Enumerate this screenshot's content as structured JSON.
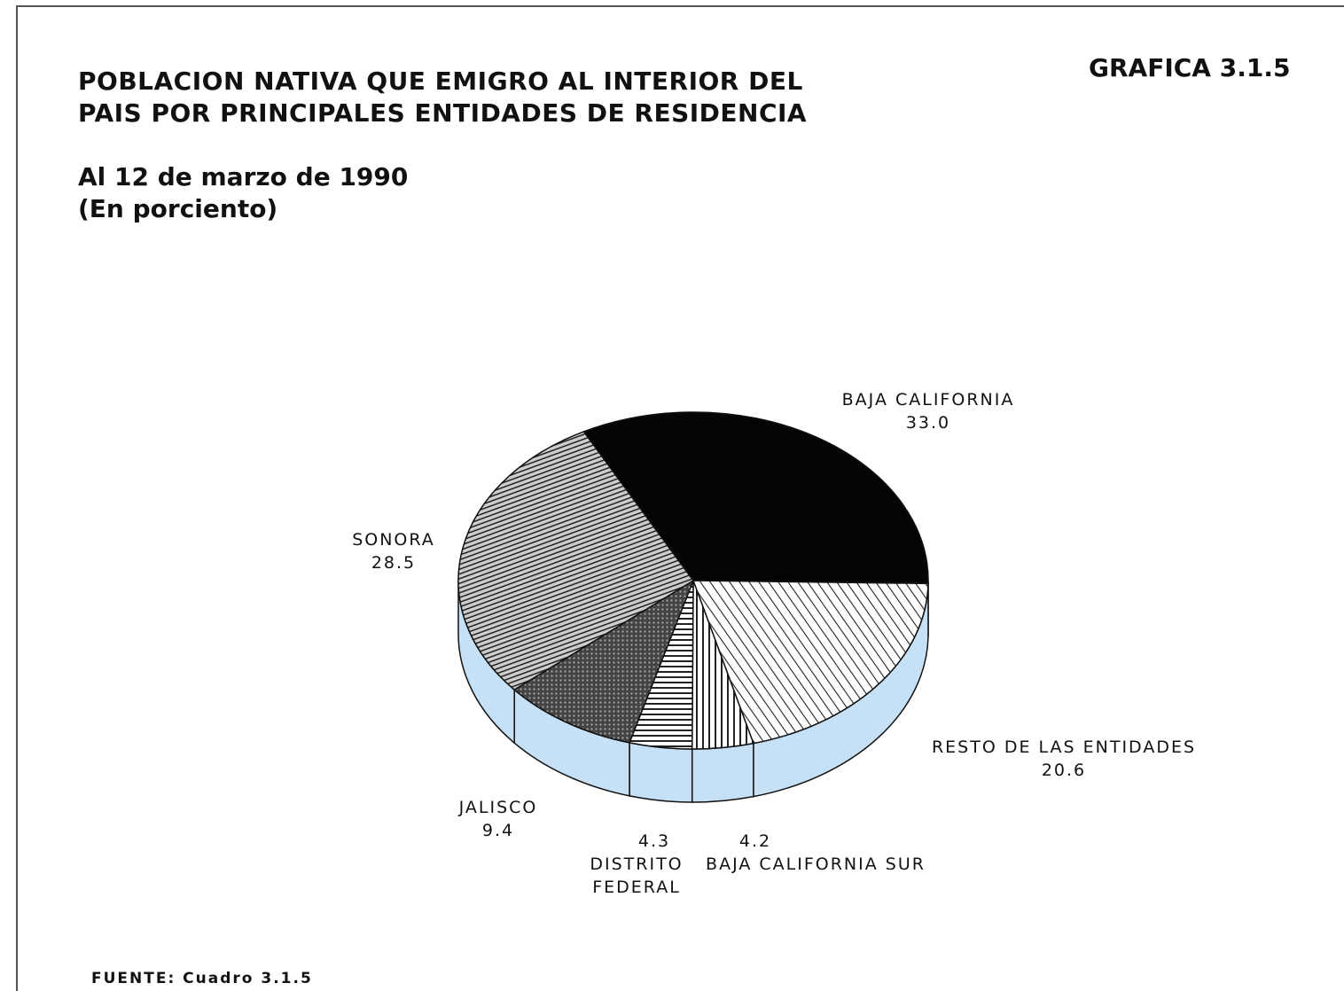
{
  "chart_data": {
    "type": "pie",
    "title": "POBLACION NATIVA QUE EMIGRO AL INTERIOR DEL PAIS POR PRINCIPALES ENTIDADES DE RESIDENCIA",
    "subtitle": "Al 12 de marzo de 1990",
    "unit_note": "(En porciento)",
    "chart_id": "GRAFICA 3.1.5",
    "source": "FUENTE: Cuadro 3.1.5",
    "categories": [
      "BAJA CALIFORNIA",
      "RESTO DE LAS ENTIDADES",
      "BAJA CALIFORNIA SUR",
      "DISTRITO FEDERAL",
      "JALISCO",
      "SONORA"
    ],
    "values": [
      33.0,
      20.6,
      4.2,
      4.3,
      9.4,
      28.5
    ],
    "value_labels": [
      "33.0",
      "20.6",
      "4.2",
      "4.3",
      "9.4",
      "28.5"
    ]
  }
}
